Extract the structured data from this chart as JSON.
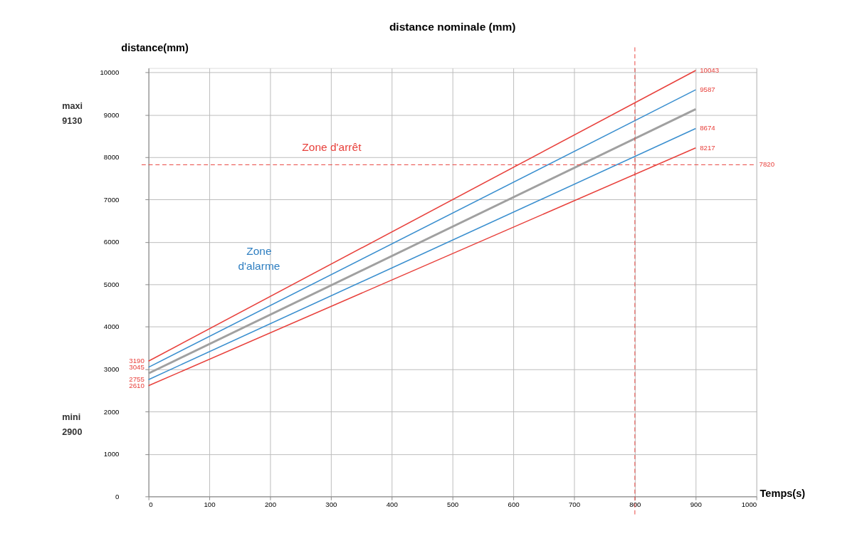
{
  "chart_data": {
    "type": "line",
    "title": "distance nominale (mm)",
    "xlabel": "Temps(s)",
    "ylabel": "distance(mm)",
    "x": [
      0,
      900
    ],
    "series": [
      {
        "color": "#e8413c",
        "values": [
          3190,
          10043
        ],
        "value_labels": [
          "3190",
          "10043"
        ]
      },
      {
        "color": "#3a8fcf",
        "values": [
          3045,
          9587
        ],
        "value_labels": [
          "3045",
          "9587"
        ]
      },
      {
        "color": "#a0a0a0",
        "values": [
          2900,
          9130
        ],
        "value_labels": [
          null,
          null
        ]
      },
      {
        "color": "#3a8fcf",
        "values": [
          2755,
          8674
        ],
        "value_labels": [
          "2755",
          "8674"
        ]
      },
      {
        "color": "#e8413c",
        "values": [
          2610,
          8217
        ],
        "value_labels": [
          "2610",
          "8217"
        ]
      }
    ],
    "xlim": [
      0,
      1000
    ],
    "xticks": [
      0,
      100,
      200,
      300,
      400,
      500,
      600,
      700,
      800,
      900,
      1000
    ],
    "ylim": [
      0,
      10100
    ],
    "yticks": [
      0,
      1000,
      2000,
      3000,
      4000,
      5000,
      6000,
      7000,
      8000,
      9000,
      10000
    ],
    "ref_lines": [
      {
        "axis": "y",
        "value": 7820,
        "label": "7820",
        "color": "#e8413c",
        "line_style": "dashed"
      },
      {
        "axis": "x",
        "value": 800,
        "label": null,
        "color": "#e8413c",
        "line_style": "dashed"
      }
    ],
    "annotations": [
      "Zone d'arrêt",
      "Zone d'alarme",
      "maxi 9130",
      "mini 2900"
    ],
    "grid": true,
    "legend": false,
    "marker": "none",
    "line_style": "solid"
  }
}
